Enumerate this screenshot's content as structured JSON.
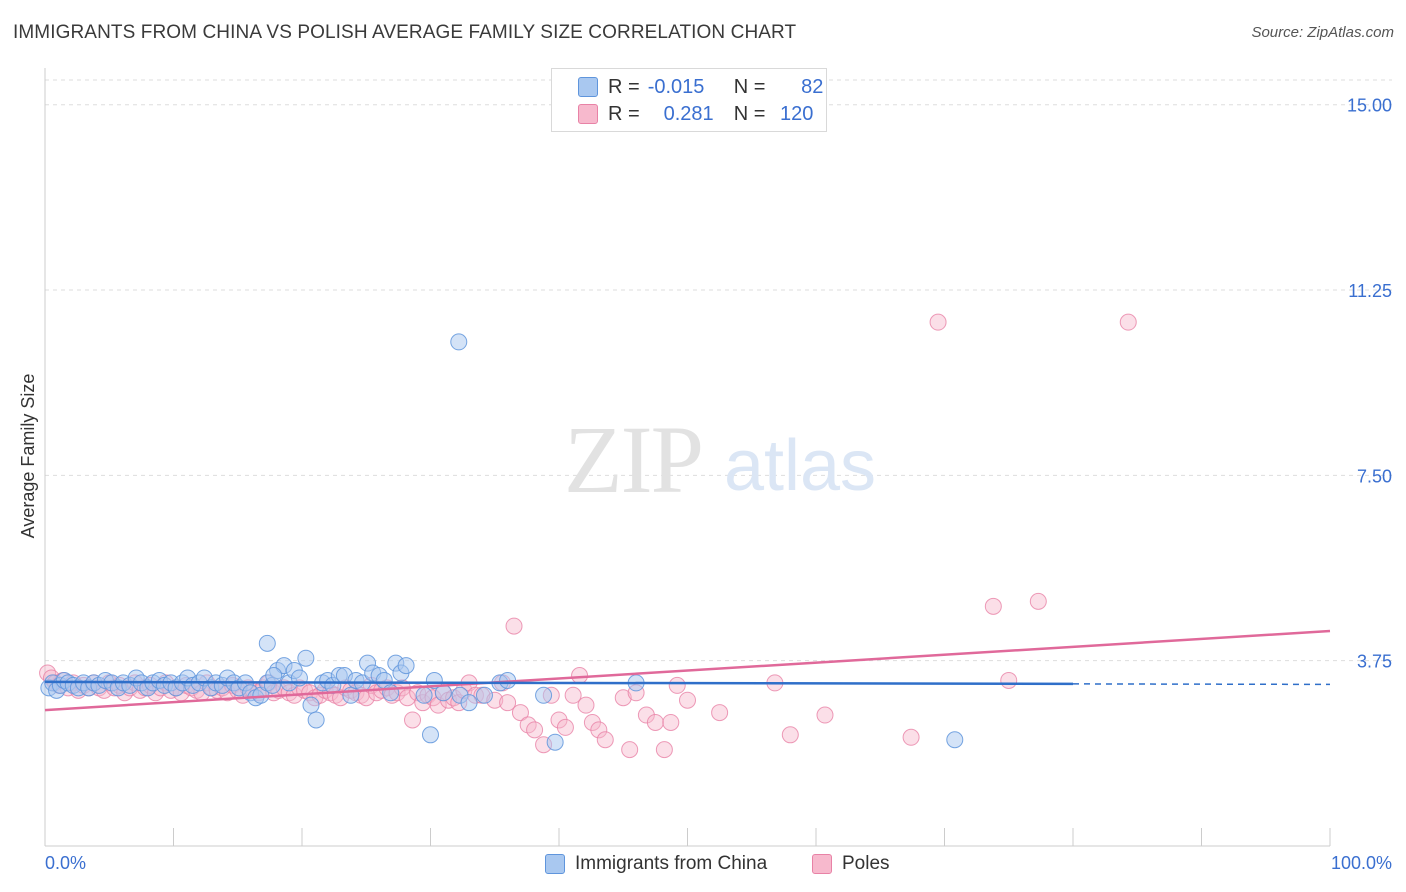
{
  "title": "IMMIGRANTS FROM CHINA VS POLISH AVERAGE FAMILY SIZE CORRELATION CHART",
  "source": "Source: ZipAtlas.com",
  "watermark": {
    "zip": "ZIP",
    "atlas": "atlas"
  },
  "legend": {
    "rows": [
      {
        "r_label": "R =",
        "r_value": "-0.015",
        "n_label": "N =",
        "n_value": "82"
      },
      {
        "r_label": "R =",
        "r_value": "0.281",
        "n_label": "N =",
        "n_value": "120"
      }
    ]
  },
  "bottom_legend": {
    "series1": "Immigrants from China",
    "series2": "Poles"
  },
  "colors": {
    "china_fill": "#a9c8f0",
    "china_stroke": "#5f95dc",
    "china_line": "#2f6fc9",
    "poles_fill": "#f7b9cd",
    "poles_stroke": "#e882a6",
    "poles_line": "#e0699a",
    "tick_label": "#3a6fd0",
    "grid": "#dddddd"
  },
  "chart_data": {
    "type": "scatter",
    "title": "IMMIGRANTS FROM CHINA VS POLISH AVERAGE FAMILY SIZE CORRELATION CHART",
    "xlabel": "",
    "ylabel": "Average Family Size",
    "xlim": [
      0,
      100
    ],
    "ylim": [
      0,
      15.5
    ],
    "x_tick_labels": [
      "0.0%",
      "100.0%"
    ],
    "y_ticks": [
      3.75,
      7.5,
      11.25,
      15.0
    ],
    "y_tick_labels": [
      "3.75",
      "7.50",
      "11.25",
      "15.00"
    ],
    "grid": true,
    "legend_placement": "top-center",
    "series": [
      {
        "name": "Immigrants from China",
        "R": -0.015,
        "N": 82,
        "trend": {
          "x": [
            0,
            80
          ],
          "y": [
            3.32,
            3.28
          ],
          "dashed_to": 100,
          "y_dashed_end": 3.27
        },
        "points": [
          [
            0.3,
            3.2
          ],
          [
            0.6,
            3.3
          ],
          [
            0.9,
            3.15
          ],
          [
            1.2,
            3.25
          ],
          [
            1.5,
            3.35
          ],
          [
            1.8,
            3.3
          ],
          [
            2.2,
            3.25
          ],
          [
            2.6,
            3.2
          ],
          [
            3.0,
            3.3
          ],
          [
            3.4,
            3.2
          ],
          [
            3.8,
            3.3
          ],
          [
            4.2,
            3.25
          ],
          [
            4.7,
            3.35
          ],
          [
            5.2,
            3.3
          ],
          [
            5.7,
            3.2
          ],
          [
            6.1,
            3.3
          ],
          [
            6.6,
            3.25
          ],
          [
            7.1,
            3.4
          ],
          [
            7.5,
            3.3
          ],
          [
            8.0,
            3.2
          ],
          [
            8.4,
            3.3
          ],
          [
            8.9,
            3.35
          ],
          [
            9.3,
            3.25
          ],
          [
            9.8,
            3.3
          ],
          [
            10.2,
            3.2
          ],
          [
            10.7,
            3.3
          ],
          [
            11.1,
            3.4
          ],
          [
            11.5,
            3.25
          ],
          [
            12.0,
            3.3
          ],
          [
            12.4,
            3.4
          ],
          [
            12.9,
            3.2
          ],
          [
            13.3,
            3.3
          ],
          [
            13.8,
            3.25
          ],
          [
            14.2,
            3.4
          ],
          [
            14.7,
            3.3
          ],
          [
            15.1,
            3.2
          ],
          [
            15.6,
            3.3
          ],
          [
            16.0,
            3.1
          ],
          [
            16.4,
            3.0
          ],
          [
            16.8,
            3.05
          ],
          [
            17.3,
            3.3
          ],
          [
            17.7,
            3.25
          ],
          [
            18.1,
            3.55
          ],
          [
            18.6,
            3.65
          ],
          [
            19.0,
            3.3
          ],
          [
            19.4,
            3.55
          ],
          [
            19.8,
            3.4
          ],
          [
            20.3,
            3.8
          ],
          [
            20.7,
            2.85
          ],
          [
            21.1,
            2.55
          ],
          [
            21.6,
            3.3
          ],
          [
            22.0,
            3.35
          ],
          [
            22.4,
            3.25
          ],
          [
            22.9,
            3.45
          ],
          [
            23.3,
            3.45
          ],
          [
            23.8,
            3.05
          ],
          [
            24.2,
            3.35
          ],
          [
            24.7,
            3.3
          ],
          [
            25.1,
            3.7
          ],
          [
            25.5,
            3.5
          ],
          [
            26.0,
            3.45
          ],
          [
            26.4,
            3.35
          ],
          [
            26.9,
            3.1
          ],
          [
            27.3,
            3.7
          ],
          [
            27.7,
            3.5
          ],
          [
            28.1,
            3.65
          ],
          [
            29.5,
            3.05
          ],
          [
            30.3,
            3.35
          ],
          [
            31.0,
            3.1
          ],
          [
            32.3,
            3.05
          ],
          [
            33.0,
            2.9
          ],
          [
            34.2,
            3.05
          ],
          [
            35.4,
            3.3
          ],
          [
            36.0,
            3.35
          ],
          [
            17.3,
            4.1
          ],
          [
            17.8,
            3.45
          ],
          [
            32.2,
            10.2
          ],
          [
            30.0,
            2.25
          ],
          [
            39.7,
            2.1
          ],
          [
            38.8,
            3.05
          ],
          [
            46.0,
            3.3
          ],
          [
            70.8,
            2.15
          ]
        ]
      },
      {
        "name": "Poles",
        "R": 0.281,
        "N": 120,
        "trend": {
          "x": [
            0,
            100
          ],
          "y": [
            2.75,
            4.35
          ]
        },
        "points": [
          [
            0.2,
            3.5
          ],
          [
            0.5,
            3.4
          ],
          [
            0.8,
            3.3
          ],
          [
            1.1,
            3.25
          ],
          [
            1.4,
            3.35
          ],
          [
            1.8,
            3.2
          ],
          [
            2.2,
            3.3
          ],
          [
            2.6,
            3.15
          ],
          [
            3.0,
            3.25
          ],
          [
            3.4,
            3.2
          ],
          [
            3.8,
            3.3
          ],
          [
            4.2,
            3.2
          ],
          [
            4.6,
            3.15
          ],
          [
            5.0,
            3.3
          ],
          [
            5.4,
            3.2
          ],
          [
            5.8,
            3.25
          ],
          [
            6.2,
            3.1
          ],
          [
            6.6,
            3.2
          ],
          [
            7.0,
            3.3
          ],
          [
            7.4,
            3.15
          ],
          [
            7.8,
            3.2
          ],
          [
            8.2,
            3.25
          ],
          [
            8.6,
            3.1
          ],
          [
            9.0,
            3.2
          ],
          [
            9.4,
            3.3
          ],
          [
            9.8,
            3.15
          ],
          [
            10.2,
            3.2
          ],
          [
            10.6,
            3.1
          ],
          [
            11.0,
            3.25
          ],
          [
            11.4,
            3.2
          ],
          [
            11.8,
            3.15
          ],
          [
            12.2,
            3.1
          ],
          [
            12.6,
            3.3
          ],
          [
            13.0,
            3.2
          ],
          [
            13.4,
            3.15
          ],
          [
            13.8,
            3.2
          ],
          [
            14.2,
            3.1
          ],
          [
            14.6,
            3.25
          ],
          [
            15.0,
            3.15
          ],
          [
            15.4,
            3.05
          ],
          [
            15.8,
            3.2
          ],
          [
            16.2,
            3.15
          ],
          [
            16.6,
            3.1
          ],
          [
            17.0,
            3.2
          ],
          [
            17.4,
            3.3
          ],
          [
            17.8,
            3.1
          ],
          [
            18.2,
            3.15
          ],
          [
            18.6,
            3.2
          ],
          [
            19.0,
            3.1
          ],
          [
            19.4,
            3.05
          ],
          [
            19.8,
            3.2
          ],
          [
            20.2,
            3.15
          ],
          [
            20.6,
            3.1
          ],
          [
            21.0,
            3.0
          ],
          [
            21.4,
            3.05
          ],
          [
            21.8,
            3.15
          ],
          [
            22.2,
            3.1
          ],
          [
            22.6,
            3.05
          ],
          [
            23.0,
            3.0
          ],
          [
            23.4,
            3.2
          ],
          [
            23.8,
            3.15
          ],
          [
            24.2,
            3.1
          ],
          [
            24.6,
            3.05
          ],
          [
            25.0,
            3.0
          ],
          [
            25.4,
            3.25
          ],
          [
            25.8,
            3.1
          ],
          [
            26.2,
            3.15
          ],
          [
            26.6,
            3.2
          ],
          [
            27.0,
            3.05
          ],
          [
            27.4,
            3.1
          ],
          [
            27.8,
            3.2
          ],
          [
            28.2,
            3.0
          ],
          [
            28.6,
            2.55
          ],
          [
            29.0,
            3.1
          ],
          [
            29.4,
            2.9
          ],
          [
            29.8,
            3.05
          ],
          [
            30.2,
            3.0
          ],
          [
            30.6,
            2.85
          ],
          [
            31.0,
            3.1
          ],
          [
            31.4,
            2.95
          ],
          [
            31.8,
            3.0
          ],
          [
            32.2,
            2.9
          ],
          [
            32.6,
            3.15
          ],
          [
            33.0,
            3.3
          ],
          [
            33.5,
            3.05
          ],
          [
            34.0,
            3.05
          ],
          [
            35.0,
            2.95
          ],
          [
            35.6,
            3.3
          ],
          [
            36.0,
            2.9
          ],
          [
            36.5,
            4.45
          ],
          [
            37.0,
            2.7
          ],
          [
            37.6,
            2.45
          ],
          [
            38.1,
            2.35
          ],
          [
            38.8,
            2.05
          ],
          [
            39.4,
            3.05
          ],
          [
            40.0,
            2.55
          ],
          [
            40.5,
            2.4
          ],
          [
            41.1,
            3.05
          ],
          [
            41.6,
            3.45
          ],
          [
            42.1,
            2.85
          ],
          [
            42.6,
            2.5
          ],
          [
            43.1,
            2.35
          ],
          [
            43.6,
            2.15
          ],
          [
            45.0,
            3.0
          ],
          [
            45.5,
            1.95
          ],
          [
            46.0,
            3.1
          ],
          [
            46.8,
            2.65
          ],
          [
            47.5,
            2.5
          ],
          [
            48.2,
            1.95
          ],
          [
            48.7,
            2.5
          ],
          [
            49.2,
            3.25
          ],
          [
            50.0,
            2.95
          ],
          [
            52.5,
            2.7
          ],
          [
            56.8,
            3.3
          ],
          [
            58.0,
            2.25
          ],
          [
            60.7,
            2.65
          ],
          [
            67.4,
            2.2
          ],
          [
            69.5,
            10.6
          ],
          [
            84.3,
            10.6
          ],
          [
            77.3,
            4.95
          ],
          [
            73.8,
            4.85
          ],
          [
            75.0,
            3.35
          ]
        ]
      }
    ]
  }
}
